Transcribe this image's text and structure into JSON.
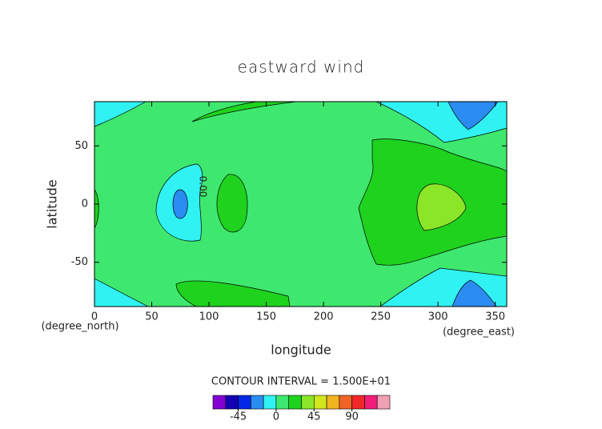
{
  "chart_data": {
    "type": "contour",
    "title": "eastward wind",
    "x_label": "longitude",
    "y_label": "latitude",
    "x_unit": "(degree_east)",
    "y_unit": "(degree_north)",
    "xlim": [
      0,
      360
    ],
    "xticks": [
      0,
      50,
      100,
      150,
      200,
      250,
      300,
      350
    ],
    "ylim": [
      -88,
      88
    ],
    "yticks": [
      -50,
      0,
      50
    ],
    "contour_label": "0.00",
    "contour_interval_text": "CONTOUR INTERVAL = 1.500E+01",
    "levels": [
      -75,
      -60,
      -45,
      -30,
      -15,
      0,
      15,
      30,
      45,
      60,
      75,
      90,
      105,
      120,
      135
    ],
    "colors": [
      "#8200d2",
      "#1400b4",
      "#0028e6",
      "#2a8cf0",
      "#30f2f2",
      "#3ee86e",
      "#1ed21e",
      "#8ce628",
      "#d2e61e",
      "#f0b41e",
      "#f06428",
      "#f02828",
      "#f01e78",
      "#f0a0b4"
    ],
    "colorbar_ticks": [
      -45,
      0,
      45,
      90
    ]
  }
}
